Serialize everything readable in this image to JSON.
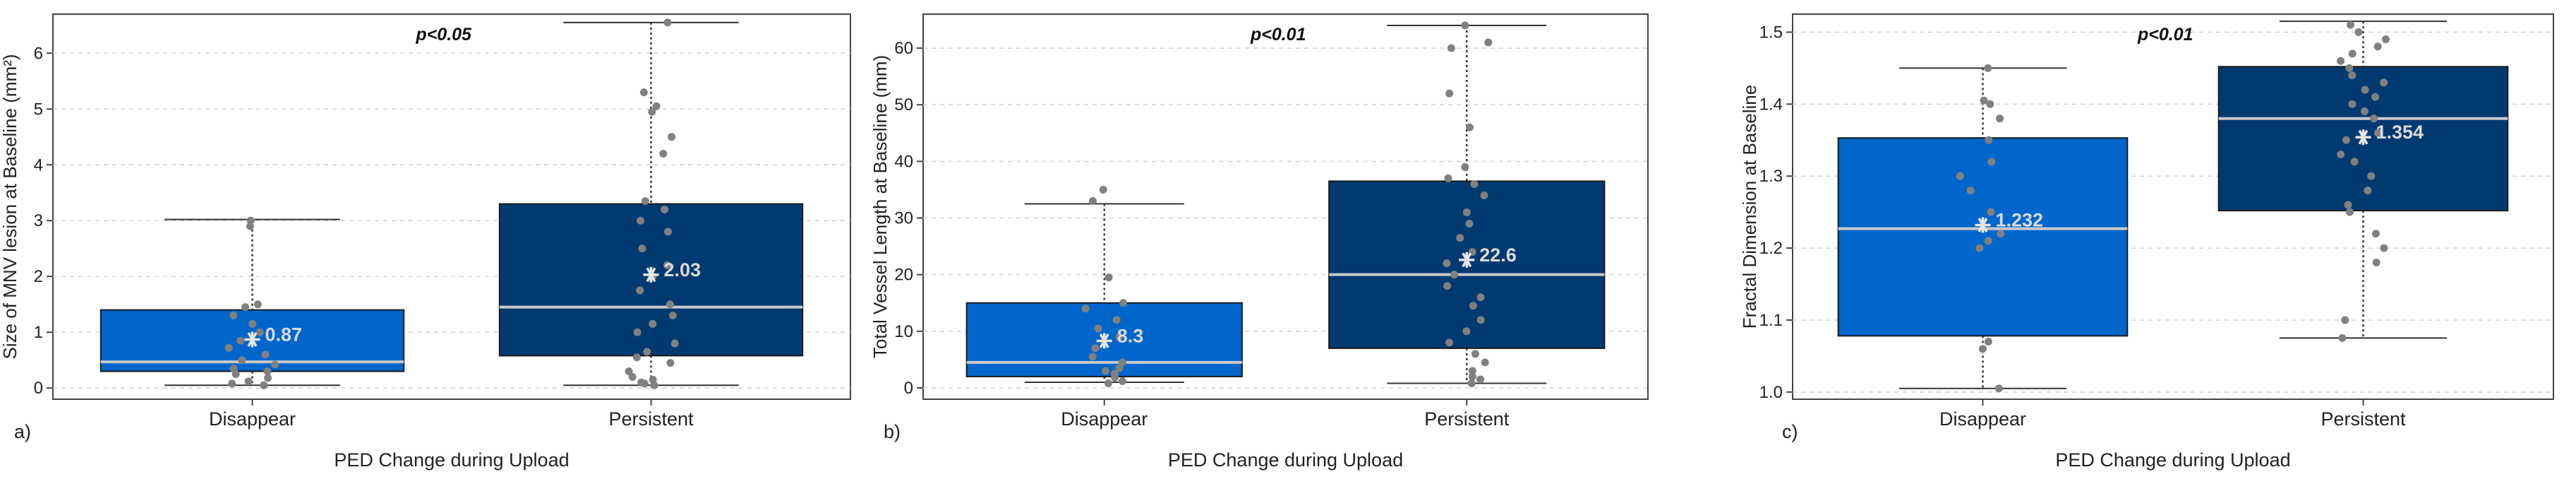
{
  "colors": {
    "disappear_box": "#0066CC",
    "persistent_box": "#003A70",
    "median_line": "#C9C9C9",
    "points": "#808080",
    "mean_label": "#D9D9D9",
    "grid": "#D0D0D0",
    "whisker": "#333333"
  },
  "chart_data": [
    {
      "type": "box",
      "panel_label": "a)",
      "title": "",
      "ylabel": "Size of MNV lesion at Baseline (mm²)",
      "xlabel": "PED Change during Upload",
      "categories": [
        "Disappear",
        "Persistent"
      ],
      "annotation": "p<0.05",
      "ylim": [
        -0.2,
        6.7
      ],
      "yticks": [
        0,
        1,
        2,
        3,
        4,
        5,
        6
      ],
      "ytick_labels": [
        "0",
        "1",
        "2",
        "3",
        "4",
        "5",
        "6"
      ],
      "grid": true,
      "boxes": [
        {
          "category": "Disappear",
          "min": 0.05,
          "q1": 0.3,
          "median": 0.47,
          "q3": 1.4,
          "max": 3.02,
          "mean": 0.87,
          "mean_label": "0.87"
        },
        {
          "category": "Persistent",
          "min": 0.05,
          "q1": 0.58,
          "median": 1.45,
          "q3": 3.3,
          "max": 6.55,
          "mean": 2.03,
          "mean_label": "2.03"
        }
      ],
      "points": [
        [
          0.05,
          0.08,
          0.12,
          0.18,
          0.25,
          0.3,
          0.35,
          0.42,
          0.5,
          0.6,
          0.72,
          0.85,
          1.0,
          1.15,
          1.3,
          1.45,
          1.5,
          2.9,
          3.0
        ],
        [
          0.05,
          0.08,
          0.1,
          0.15,
          0.2,
          0.3,
          0.45,
          0.55,
          0.65,
          0.8,
          1.0,
          1.15,
          1.3,
          1.5,
          1.75,
          2.0,
          2.2,
          2.5,
          2.8,
          3.0,
          3.2,
          3.35,
          4.2,
          4.5,
          4.95,
          5.05,
          5.3,
          6.55
        ]
      ]
    },
    {
      "type": "box",
      "panel_label": "b)",
      "title": "",
      "ylabel": "Total Vessel Length at Baseline (mm)",
      "xlabel": "PED Change during Upload",
      "categories": [
        "Disappear",
        "Persistent"
      ],
      "annotation": "p<0.01",
      "ylim": [
        -2,
        66
      ],
      "yticks": [
        0,
        10,
        20,
        30,
        40,
        50,
        60
      ],
      "ytick_labels": [
        "0",
        "10",
        "20",
        "30",
        "40",
        "50",
        "60"
      ],
      "grid": true,
      "boxes": [
        {
          "category": "Disappear",
          "min": 1.0,
          "q1": 2.0,
          "median": 4.5,
          "q3": 15.0,
          "max": 32.5,
          "mean": 8.3,
          "mean_label": "8.3"
        },
        {
          "category": "Persistent",
          "min": 0.8,
          "q1": 7.0,
          "median": 20.0,
          "q3": 36.5,
          "max": 64.0,
          "mean": 22.6,
          "mean_label": "22.6"
        }
      ],
      "points": [
        [
          0.8,
          1.2,
          1.8,
          2.5,
          3.0,
          3.5,
          4.5,
          5.5,
          7.0,
          9.0,
          10.5,
          12.0,
          14.0,
          15.0,
          19.5,
          33.0,
          35.0
        ],
        [
          0.8,
          1.5,
          2.0,
          3.0,
          4.5,
          6.0,
          8.0,
          10.0,
          12.0,
          14.5,
          16.0,
          18.0,
          20.0,
          22.0,
          24.0,
          26.5,
          29.0,
          31.0,
          34.0,
          36.0,
          37.0,
          39.0,
          46.0,
          52.0,
          60.0,
          61.0,
          64.0
        ]
      ]
    },
    {
      "type": "box",
      "panel_label": "c)",
      "title": "",
      "ylabel": "Fractal Dimension at Baseline",
      "xlabel": "PED Change during Upload",
      "categories": [
        "Disappear",
        "Persistent"
      ],
      "annotation": "p<0.01",
      "ylim": [
        0.99,
        1.525
      ],
      "yticks": [
        1.0,
        1.1,
        1.2,
        1.3,
        1.4,
        1.5
      ],
      "ytick_labels": [
        "1.0",
        "1.1",
        "1.2",
        "1.3",
        "1.4",
        "1.5"
      ],
      "grid": true,
      "boxes": [
        {
          "category": "Disappear",
          "min": 1.005,
          "q1": 1.078,
          "median": 1.227,
          "q3": 1.353,
          "max": 1.45,
          "mean": 1.232,
          "mean_label": "1.232"
        },
        {
          "category": "Persistent",
          "min": 1.075,
          "q1": 1.252,
          "median": 1.38,
          "q3": 1.452,
          "max": 1.515,
          "mean": 1.354,
          "mean_label": "1.354"
        }
      ],
      "points": [
        [
          1.005,
          1.06,
          1.07,
          1.2,
          1.21,
          1.22,
          1.25,
          1.28,
          1.3,
          1.32,
          1.35,
          1.38,
          1.4,
          1.405,
          1.45
        ],
        [
          1.075,
          1.1,
          1.18,
          1.2,
          1.22,
          1.25,
          1.26,
          1.28,
          1.3,
          1.32,
          1.33,
          1.35,
          1.36,
          1.38,
          1.39,
          1.4,
          1.41,
          1.42,
          1.43,
          1.44,
          1.45,
          1.46,
          1.47,
          1.48,
          1.49,
          1.5,
          1.51
        ]
      ]
    }
  ]
}
